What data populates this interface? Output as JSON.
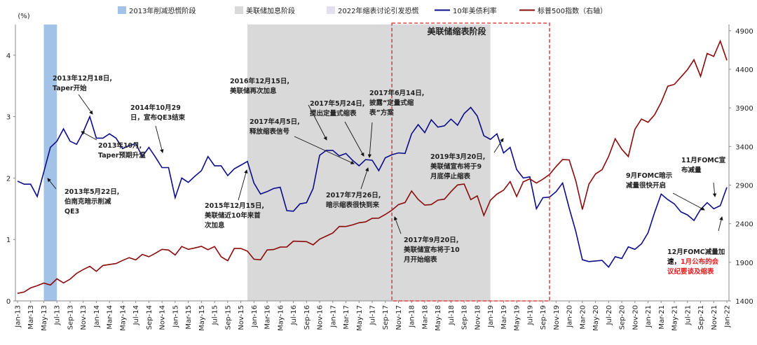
{
  "chart_data": {
    "type": "line",
    "y_label": "(%)",
    "x": [
      "Jan-13",
      null,
      "Mar-13",
      null,
      "May-13",
      null,
      "Jul-13",
      null,
      "Sep-13",
      null,
      "Nov-13",
      null,
      "Jan-14",
      null,
      "Mar-14",
      null,
      "May-14",
      null,
      "Jul-14",
      null,
      "Sep-14",
      null,
      "Nov-14",
      null,
      "Jan-15",
      null,
      "Mar-15",
      null,
      "May-15",
      null,
      "Jul-15",
      null,
      "Sep-15",
      null,
      "Nov-15",
      null,
      "Jan-16",
      null,
      "Mar-16",
      null,
      "May-16",
      null,
      "Jul-16",
      null,
      "Sep-16",
      null,
      "Nov-16",
      null,
      "Jan-17",
      null,
      "Mar-17",
      null,
      "May-17",
      null,
      "Jul-17",
      null,
      "Sep-17",
      null,
      "Nov-17",
      null,
      "Jan-18",
      null,
      "Mar-18",
      null,
      "May-18",
      null,
      "Jul-18",
      null,
      "Sep-18",
      null,
      "Nov-18",
      null,
      "Jan-19",
      null,
      "Mar-19",
      null,
      "May-19",
      null,
      "Jul-19",
      null,
      "Sep-19",
      null,
      "Nov-19",
      null,
      "Jan-20",
      null,
      "Mar-20",
      null,
      "May-20",
      null,
      "Jul-20",
      null,
      "Sep-20",
      null,
      "Nov-20",
      null,
      "Jan-21",
      null,
      "Mar-21",
      null,
      "May-21",
      null,
      "Jul-21",
      null,
      "Sep-21",
      null,
      "Nov-21",
      null,
      "Jan-22"
    ],
    "series": [
      {
        "name": "10年美债利率",
        "color": "#0c0c8a",
        "values": [
          1.95,
          1.9,
          1.9,
          1.7,
          2.1,
          2.5,
          2.6,
          2.8,
          2.6,
          2.55,
          2.75,
          3.0,
          2.65,
          2.65,
          2.72,
          2.65,
          2.48,
          2.53,
          2.56,
          2.35,
          2.5,
          2.34,
          2.17,
          2.17,
          1.68,
          2.0,
          1.93,
          2.03,
          2.12,
          2.35,
          2.2,
          2.2,
          2.04,
          2.15,
          2.21,
          2.27,
          1.92,
          1.74,
          1.78,
          1.83,
          1.85,
          1.47,
          1.46,
          1.58,
          1.6,
          1.83,
          2.37,
          2.45,
          2.45,
          2.36,
          2.4,
          2.29,
          2.2,
          2.3,
          2.29,
          2.12,
          2.33,
          2.38,
          2.41,
          2.4,
          2.72,
          2.87,
          2.74,
          2.95,
          2.83,
          2.85,
          2.96,
          2.86,
          3.05,
          3.15,
          3.01,
          2.69,
          2.63,
          2.72,
          2.41,
          2.5,
          2.14,
          2.0,
          2.02,
          1.5,
          1.68,
          1.69,
          1.78,
          1.92,
          1.51,
          1.13,
          0.67,
          0.64,
          0.65,
          0.66,
          0.55,
          0.72,
          0.69,
          0.88,
          0.84,
          0.93,
          1.11,
          1.44,
          1.74,
          1.65,
          1.58,
          1.45,
          1.4,
          1.31,
          1.49,
          1.6,
          1.5,
          1.55,
          1.85
        ]
      },
      {
        "name": "标普500指数（右轴）",
        "color": "#8b0a0a",
        "axis": "y2",
        "values": [
          1498,
          1515,
          1569,
          1598,
          1631,
          1606,
          1686,
          1633,
          1682,
          1757,
          1806,
          1848,
          1783,
          1859,
          1872,
          1884,
          1924,
          1960,
          1931,
          2003,
          1972,
          2018,
          2068,
          2059,
          1995,
          2105,
          2068,
          2086,
          2107,
          2063,
          2104,
          1972,
          1920,
          2079,
          2080,
          2044,
          1940,
          1932,
          2060,
          2065,
          2097,
          2099,
          2174,
          2171,
          2168,
          2126,
          2199,
          2239,
          2279,
          2364,
          2363,
          2384,
          2412,
          2423,
          2470,
          2472,
          2519,
          2575,
          2648,
          2674,
          2824,
          2714,
          2641,
          2648,
          2705,
          2718,
          2816,
          2902,
          2914,
          2712,
          2760,
          2507,
          2704,
          2784,
          2834,
          2946,
          2752,
          2942,
          2980,
          2926,
          2977,
          3038,
          3141,
          3231,
          3226,
          2954,
          2585,
          2912,
          3044,
          3100,
          3271,
          3500,
          3363,
          3270,
          3622,
          3756,
          3714,
          3811,
          3973,
          4181,
          4204,
          4298,
          4395,
          4523,
          4308,
          4605,
          4567,
          4766,
          4516
        ]
      }
    ],
    "regions": [
      {
        "name": "2013年削减恐慌阶段",
        "color": "#a3c2e8",
        "start": "2013-05",
        "end": "2013-06"
      },
      {
        "name": "美联储加息阶段",
        "color": "#d9d9d9",
        "start": "2015-12",
        "end": "2018-12"
      },
      {
        "name": "2022年缩表讨论引发恐慌",
        "color": "#e4dff0"
      }
    ],
    "box": {
      "label": "美联储缩表阶段",
      "color": "#e02020",
      "start": "2017-10",
      "end": "2019-10"
    },
    "ylim": [
      0,
      4.5
    ],
    "yticks": [
      0,
      1,
      2,
      3,
      4
    ],
    "y2lim": [
      1400,
      4980
    ],
    "y2ticks": [
      1400,
      1900,
      2400,
      2900,
      3400,
      3900,
      4400,
      4900
    ],
    "annotations": [
      {
        "color": "#000",
        "lines": [
          "2013年12月18日,",
          "Taper开始"
        ]
      },
      {
        "color": "#000",
        "lines": [
          "2013年10月,",
          "Taper预期升温"
        ]
      },
      {
        "color": "#e02020",
        "lines": [
          "2013年5月22日,",
          "伯南克暗示削减",
          "QE3"
        ]
      },
      {
        "color": "#000",
        "lines": [
          "2014年10月29",
          "日，宣布QE3结束"
        ]
      },
      {
        "color": "#000",
        "lines": [
          "2015年12月15日,",
          "美联储近10年来首",
          "次加息"
        ]
      },
      {
        "color": "#000",
        "lines": [
          "2016年12月15日,",
          "美联储再次加息"
        ]
      },
      {
        "color": "#e02020",
        "lines": [
          "2017年4月5日,",
          "释放缩表信号"
        ]
      },
      {
        "color": "#000",
        "lines": [
          "2017年5月24日,",
          "提出定量式缩表"
        ]
      },
      {
        "color": "#000",
        "lines": [
          "2017年6月14日,",
          "披露“定量式缩",
          "表”方案"
        ]
      },
      {
        "color": "#000",
        "lines": [
          "2017年7月26日,",
          "暗示缩表很快到来"
        ]
      },
      {
        "color": "#000",
        "lines": [
          "2017年9月20日,",
          "美联储宣布将于10",
          "月开始缩表"
        ]
      },
      {
        "color": "#000",
        "lines": [
          "2019年3月20日,",
          "美联储宣布将于9",
          "月底停止缩表"
        ]
      },
      {
        "color": "#000",
        "lines": [
          "9月FOMC暗示",
          "减量很快开启"
        ]
      },
      {
        "color": "#000",
        "lines": [
          "11月FOMC宣",
          "布减量"
        ]
      },
      {
        "color": "#000",
        "lines": [
          "12月FOMC减量加",
          [
            {
              "text": "速，",
              "color": "#000"
            },
            {
              "text": "1月公布的会",
              "color": "#e02020"
            }
          ],
          [
            {
              "text": "议纪要谈及缩表",
              "color": "#e02020"
            }
          ]
        ]
      }
    ]
  }
}
